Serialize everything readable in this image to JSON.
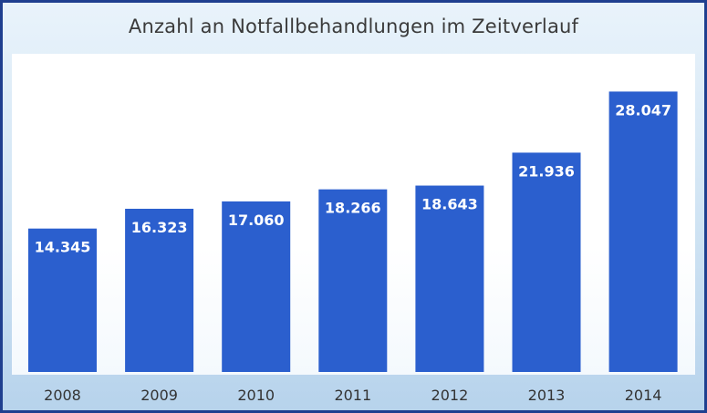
{
  "chart_data": {
    "type": "bar",
    "title": "Anzahl an Notfallbehandlungen im Zeitverlauf",
    "categories": [
      "2008",
      "2009",
      "2010",
      "2011",
      "2012",
      "2013",
      "2014"
    ],
    "values": [
      14345,
      16323,
      17060,
      18266,
      18643,
      21936,
      28047
    ],
    "value_labels": [
      "14.345",
      "16.323",
      "17.060",
      "18.266",
      "18.643",
      "21.936",
      "28.047"
    ],
    "xlabel": "",
    "ylabel": "",
    "ylim": [
      0,
      30000
    ],
    "grid": false,
    "legend": "none",
    "colors": {
      "bar": "#2b5fce",
      "background": "#ffffff",
      "frame": "#1f3f8f"
    }
  }
}
